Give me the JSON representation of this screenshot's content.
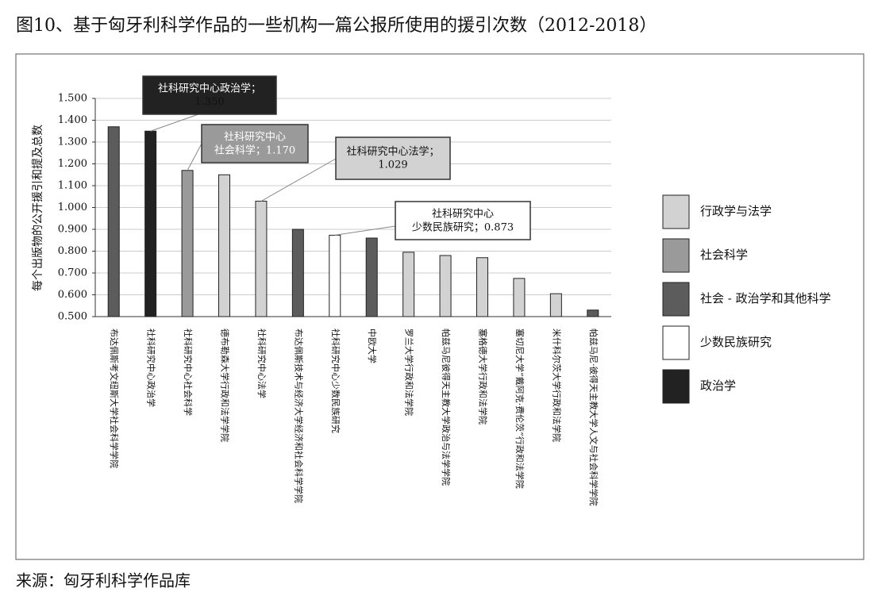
{
  "chart_data": {
    "type": "bar",
    "title": "图10、基于匈牙利科学作品的一些机构一篇公报所使用的援引次数（2012-2018）",
    "source": "来源：匈牙利科学作品库",
    "y_label": "每个出版物的公开援引和提及总数",
    "categories": [
      "布达佩斯考文纽斯大学社会科学学院",
      "社科研究中心政治学",
      "社科研究中心社会科学",
      "德布勒森大学行政和法学学院",
      "社科研究中心法学",
      "布达佩斯技术与经济大学经济和社会科学学院",
      "社科研究中心少数民族研究",
      "中欧大学",
      "罗兰大学行政和法学院",
      "帕兹马尼彼得天主教大学政治与法学学院",
      "塞格德大学行政和法学院",
      "塞切尼大学“戴阿克·费伦茨”行政和法学院",
      "米什科尔茨大学行政和法学院",
      "帕兹马尼·彼得天主教大学人文与社会科学学院"
    ],
    "values": [
      1.37,
      1.35,
      1.17,
      1.15,
      1.029,
      0.9,
      0.873,
      0.86,
      0.795,
      0.78,
      0.77,
      0.675,
      0.605,
      0.53
    ],
    "value_labels": [
      null,
      "1.350",
      "1.170",
      null,
      "1.029",
      null,
      "0.873",
      null,
      null,
      null,
      null,
      null,
      null,
      null
    ],
    "colors": [
      "#5c5c5c",
      "#222222",
      "#9a9a9a",
      "#d2d2d2",
      "#d2d2d2",
      "#5c5c5c",
      "#ffffff",
      "#5c5c5c",
      "#d2d2d2",
      "#d2d2d2",
      "#d2d2d2",
      "#d2d2d2",
      "#d2d2d2",
      "#5c5c5c"
    ],
    "annotations": [
      [
        "社科研究中心政治学；"
      ],
      [
        "社科研究中心",
        "社会科学；"
      ],
      [
        "社科研究中心法学；"
      ],
      [
        "社科研究中心",
        "少数民族研究；"
      ]
    ],
    "legend": [
      {
        "name": "行政学与法学",
        "color": "#d2d2d2"
      },
      {
        "name": "社会科学",
        "color": "#9a9a9a"
      },
      {
        "name": "社会 - 政治学和其他科学",
        "color": "#5c5c5c"
      },
      {
        "name": "少数民族研究",
        "color": "#ffffff"
      },
      {
        "name": "政治学",
        "color": "#222222"
      }
    ],
    "ylim": [
      0.5,
      1.5
    ],
    "yticks": [
      {
        "value": 0.5,
        "label": "0.500"
      },
      {
        "value": 0.6,
        "label": "0.600"
      },
      {
        "value": 0.7,
        "label": "0.700"
      },
      {
        "value": 0.8,
        "label": "0.800"
      },
      {
        "value": 0.9,
        "label": "0.900"
      },
      {
        "value": 1.0,
        "label": "1.000"
      },
      {
        "value": 1.1,
        "label": "1.100"
      },
      {
        "value": 1.2,
        "label": "1.200"
      },
      {
        "value": 1.3,
        "label": "1.300"
      },
      {
        "value": 1.4,
        "label": "1.400"
      },
      {
        "value": 1.5,
        "label": "1.500"
      }
    ],
    "grid": true
  }
}
